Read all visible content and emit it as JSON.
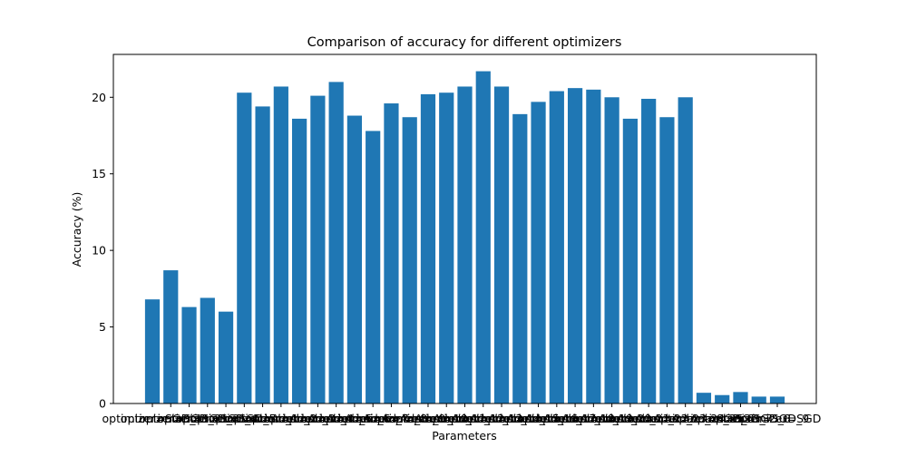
{
  "chart_data": {
    "type": "bar",
    "title": "Comparison of accuracy for different optimizers",
    "xlabel": "Parameters",
    "ylabel": "Accuracy (%)",
    "ylim": [
      0,
      22.8
    ],
    "yticks": [
      0,
      5,
      10,
      15,
      20
    ],
    "grid": false,
    "legend": "none",
    "bar_color": "#1f77b4",
    "categories": [
      "optimizer=SGD_1",
      "optimizer=SGD_2",
      "optimizer=SGD_3",
      "optimizer=SGD_4",
      "optimizer=SGD_5",
      "optimizer=Adam_1",
      "optimizer=Adam_2",
      "optimizer=Adam_3",
      "optimizer=Adam_4",
      "optimizer=Adam_5",
      "optimizer=Adam_6",
      "optimizer=Adam_7",
      "optimizer=Adam_8",
      "optimizer=Adam_9",
      "optimizer=Adam_10",
      "optimizer=Adam_11",
      "optimizer=Adam_12",
      "optimizer=Adam_13",
      "optimizer=Adam_14",
      "optimizer=Adam_15",
      "optimizer=Adam_16",
      "optimizer=Adam_17",
      "optimizer=Adam_18",
      "optimizer=Adam_19",
      "optimizer=Adam_20",
      "optimizer=Adam_21",
      "optimizer=Adam_22",
      "optimizer=Adam_23",
      "optimizer=Adam_24",
      "optimizer=Adam_25",
      "optimizer=SGD_6",
      "optimizer=SGD_7",
      "optimizer=SGD_8",
      "optimizer=SGD_9",
      "optimizer=SGD"
    ],
    "values": [
      6.8,
      8.7,
      6.3,
      6.9,
      6.0,
      20.3,
      19.4,
      20.7,
      18.6,
      20.1,
      21.0,
      18.8,
      17.8,
      19.6,
      18.7,
      20.2,
      20.3,
      20.7,
      21.7,
      20.7,
      18.9,
      19.7,
      20.4,
      20.6,
      20.5,
      20.0,
      18.6,
      19.9,
      18.7,
      20.0,
      0.7,
      0.55,
      0.75,
      0.45,
      0.45
    ]
  }
}
